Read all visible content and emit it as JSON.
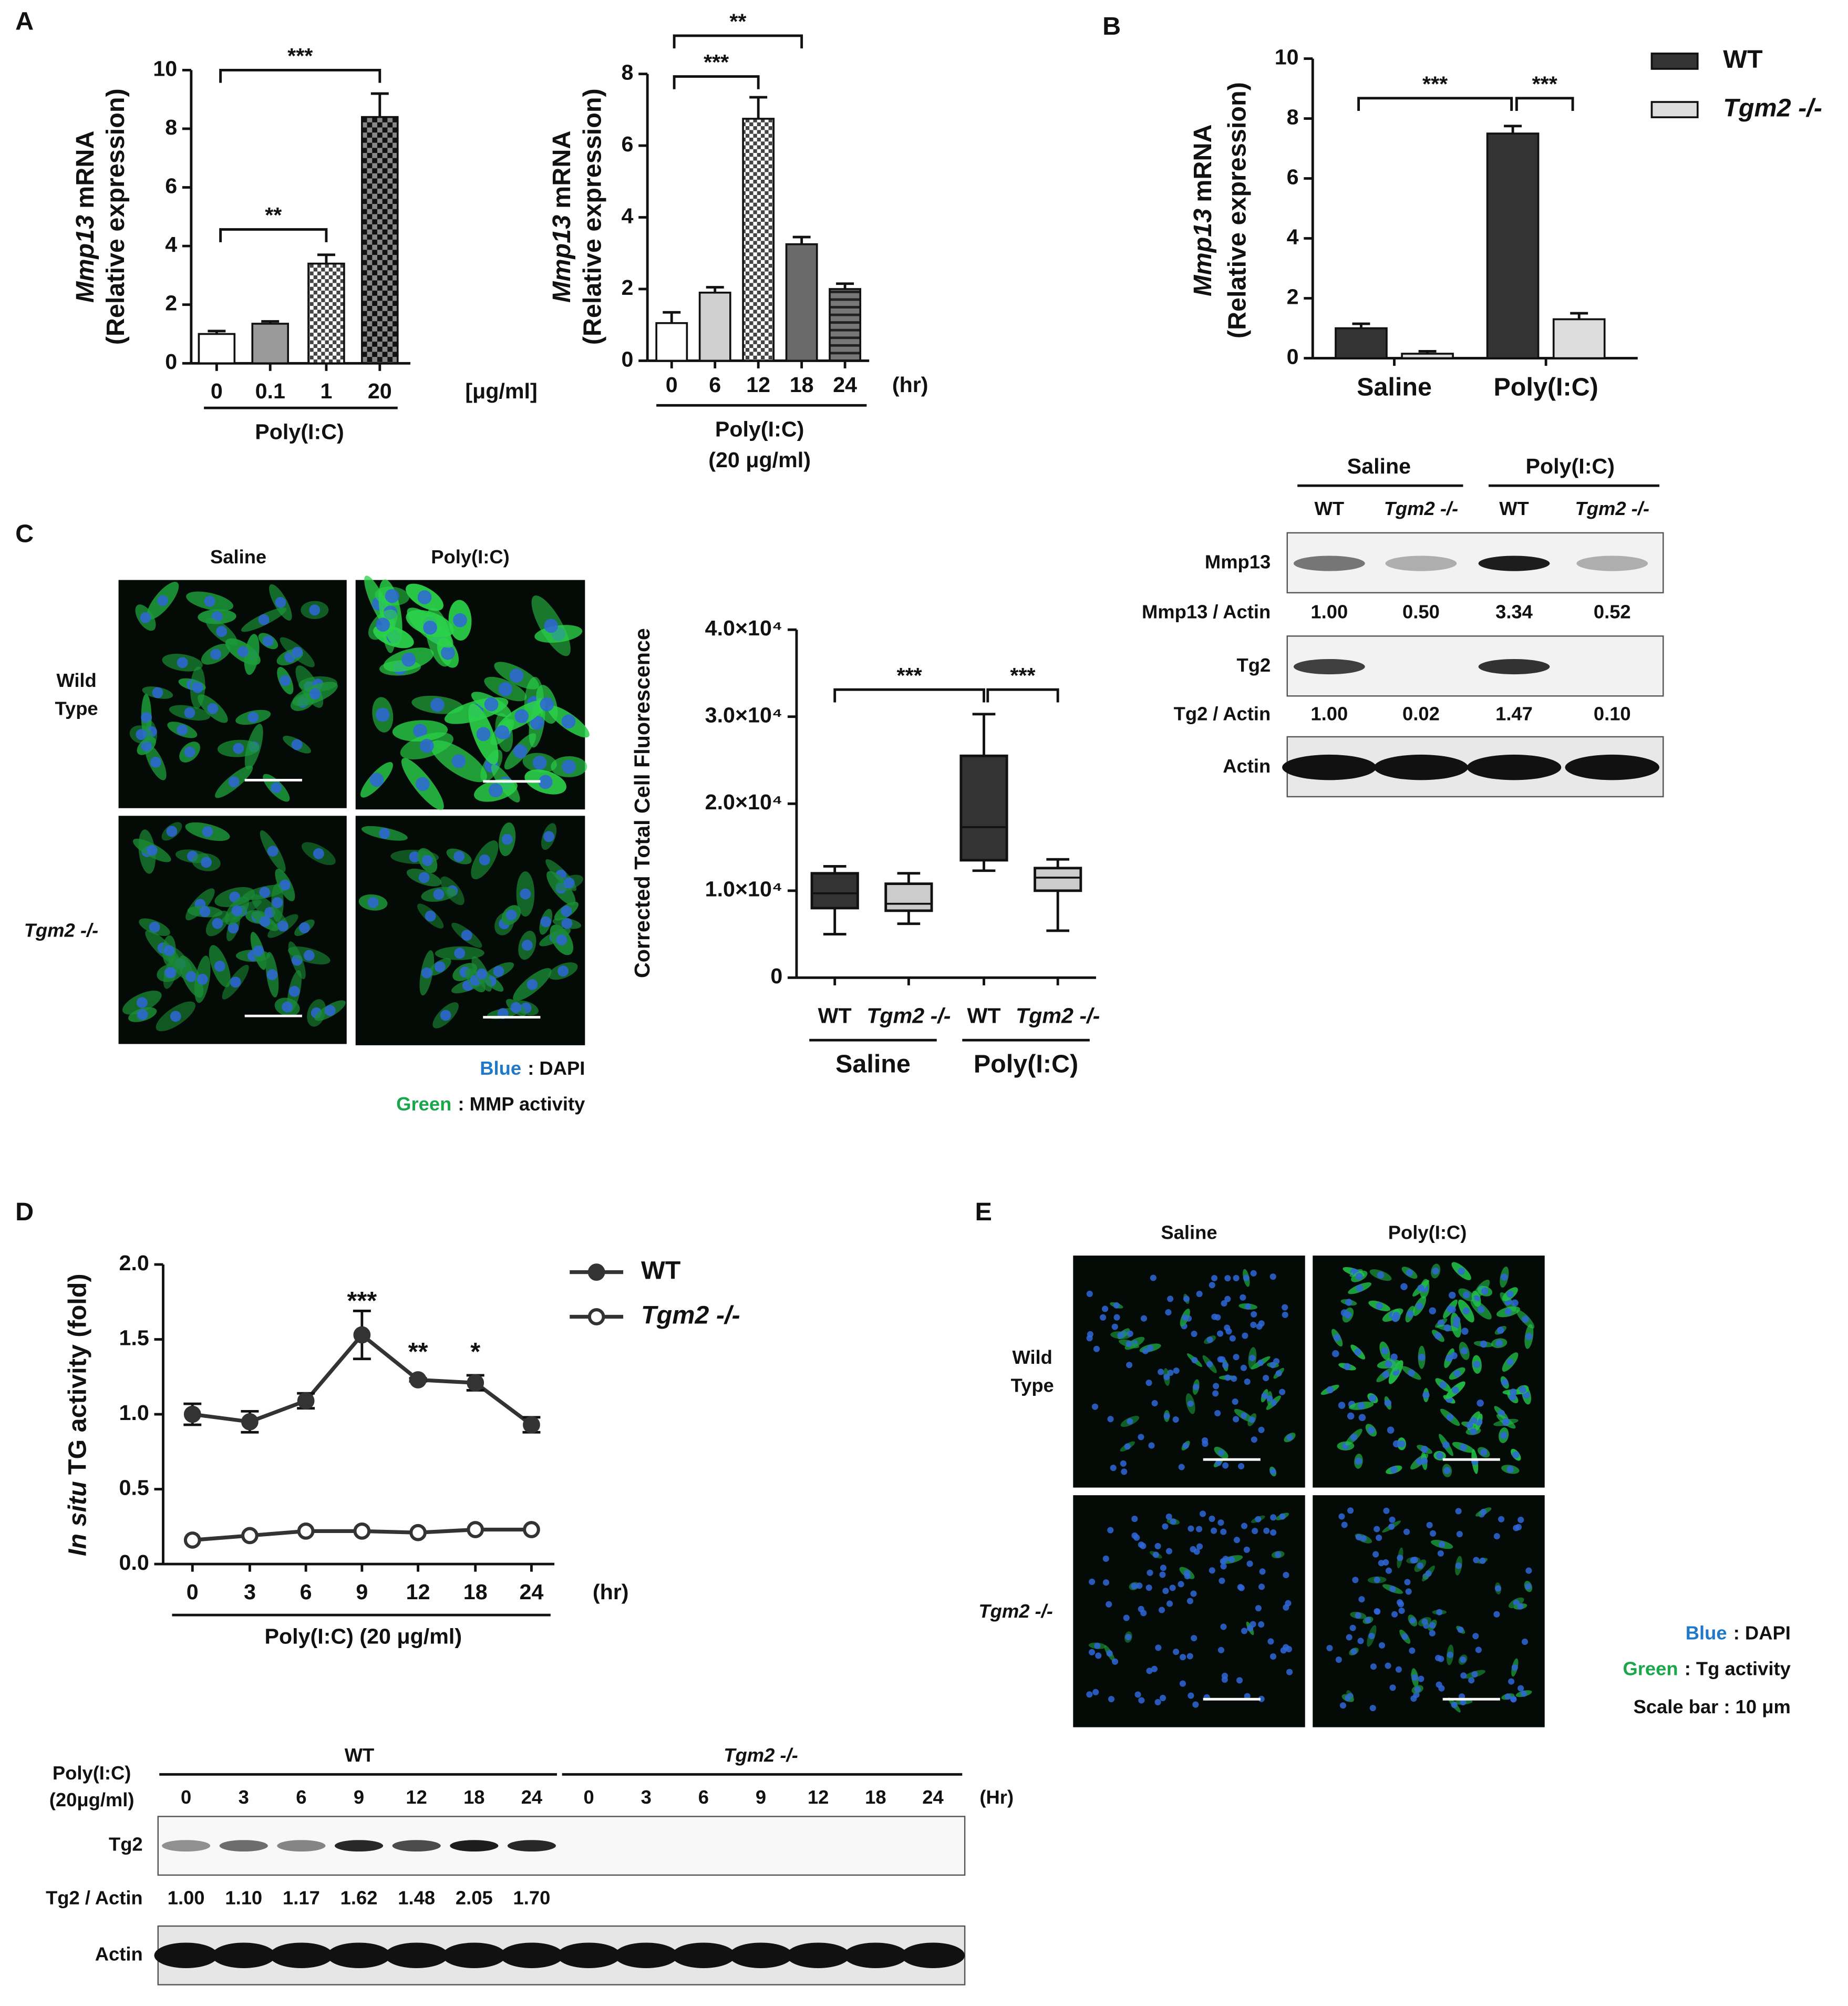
{
  "panel_labels": [
    "A",
    "B",
    "C",
    "D",
    "E"
  ],
  "chart_data": [
    {
      "type": "bar",
      "categories": [
        "0",
        "0.1",
        "1",
        "20"
      ],
      "values": [
        1.0,
        1.35,
        3.4,
        8.4
      ],
      "errors": [
        0.1,
        0.08,
        0.3,
        0.8
      ],
      "colors": [
        "#ffffff",
        "#9a9a9a",
        "url(#chk)",
        "url(#chk2)"
      ],
      "ylim": [
        0,
        10
      ],
      "yticks": [
        0,
        2,
        4,
        6,
        8,
        10
      ],
      "ylabel_italic": "Mmp13",
      "ylabel": "mRNA",
      "ylabel2": "(Relative expression)",
      "unit": "[μg/ml]",
      "xlabel": [
        "Poly(I:C)"
      ],
      "annotations": [
        "***",
        "**"
      ]
    },
    {
      "type": "bar",
      "categories": [
        "0",
        "6",
        "12",
        "18",
        "24"
      ],
      "values": [
        1.05,
        1.9,
        6.75,
        3.25,
        2.0
      ],
      "errors": [
        0.3,
        0.15,
        0.6,
        0.2,
        0.15
      ],
      "colors": [
        "#ffffff",
        "#d0d0d0",
        "url(#chk)",
        "#6a6a6a",
        "url(#hz)"
      ],
      "ylim": [
        0,
        8
      ],
      "yticks": [
        0,
        2,
        4,
        6,
        8
      ],
      "ylabel_italic": "Mmp13",
      "ylabel": "mRNA",
      "ylabel2": "(Relative expression)",
      "unit": "(hr)",
      "xlabel": [
        "Poly(I:C)",
        "(20 μg/ml)"
      ],
      "annotations": [
        "**",
        "***"
      ]
    },
    {
      "type": "bar",
      "categories": [
        "Saline",
        "Poly(I:C)"
      ],
      "series": [
        {
          "name": "WT",
          "color": "#333333",
          "values": [
            1.0,
            7.5
          ],
          "errors": [
            0.15,
            0.25
          ]
        },
        {
          "name": "Tgm2 -/-",
          "color": "#dddddd",
          "values": [
            0.15,
            1.3
          ],
          "errors": [
            0.08,
            0.2
          ]
        }
      ],
      "ylim": [
        0,
        10
      ],
      "yticks": [
        0,
        2,
        4,
        6,
        8,
        10
      ],
      "ylabel_italic": "Mmp13",
      "ylabel": "mRNA",
      "ylabel2": "(Relative expression)",
      "annotations": [
        "***",
        "***"
      ]
    },
    {
      "type": "box",
      "categories": [
        "WT",
        "Tgm2 -/-",
        "WT",
        "Tgm2 -/-"
      ],
      "groups": [
        "Saline",
        "Poly(I:C)"
      ],
      "boxes": [
        {
          "min": 5000,
          "q1": 8000,
          "median": 9700,
          "q3": 12000,
          "max": 12800
        },
        {
          "min": 6200,
          "q1": 7700,
          "median": 8500,
          "q3": 10800,
          "max": 12000
        },
        {
          "min": 12300,
          "q1": 13500,
          "median": 17300,
          "q3": 25500,
          "max": 30300
        },
        {
          "min": 5400,
          "q1": 10000,
          "median": 11500,
          "q3": 12600,
          "max": 13600
        }
      ],
      "colors": [
        "#333333",
        "#cccccc",
        "#333333",
        "#cccccc"
      ],
      "ylim": [
        0,
        40000
      ],
      "yticks": [
        0,
        {
          "value": 10000,
          "label": "1.0×10⁴"
        },
        {
          "value": 20000,
          "label": "2.0×10⁴"
        },
        {
          "value": 30000,
          "label": "3.0×10⁴"
        },
        {
          "value": 40000,
          "label": "4.0×10⁴"
        }
      ],
      "ylabel": "Corrected Total Cell Fluorescence",
      "annotations": [
        "***",
        "***"
      ]
    },
    {
      "type": "line",
      "categories": [
        "0",
        "3",
        "6",
        "9",
        "12",
        "18",
        "24"
      ],
      "series": [
        {
          "name": "WT",
          "color": "#333333",
          "marker_fill": "#333333",
          "values": [
            1.0,
            0.95,
            1.09,
            1.53,
            1.23,
            1.21,
            0.93
          ],
          "errors": [
            0.07,
            0.07,
            0.05,
            0.16,
            0.01,
            0.05,
            0.05
          ]
        },
        {
          "name": "Tgm2 -/-",
          "color": "#333333",
          "marker_fill": "#ffffff",
          "values": [
            0.16,
            0.19,
            0.22,
            0.22,
            0.21,
            0.23,
            0.23
          ]
        }
      ],
      "ylim": [
        0,
        2
      ],
      "yticks": [
        {
          "value": 0,
          "label": "0.0"
        },
        {
          "value": 0.5,
          "label": "0.5"
        },
        {
          "value": 1,
          "label": "1.0"
        },
        {
          "value": 1.5,
          "label": "1.5"
        },
        {
          "value": 2,
          "label": "2.0"
        }
      ],
      "ylabel_italic": "In situ",
      "ylabel": "TG activity (fold)",
      "unit": "(hr)",
      "xlabel": [
        "Poly(I:C) (20 μg/ml)"
      ],
      "annotations": [
        "***",
        "**",
        "*"
      ]
    }
  ],
  "blot_b": {
    "groups": [
      "Saline",
      "Poly(I:C)"
    ],
    "lanes": [
      "WT",
      "Tgm2 -/-",
      "WT",
      "Tgm2 -/-"
    ],
    "rows": [
      {
        "label": "Mmp13"
      },
      {
        "label": "Mmp13 / Actin",
        "values": [
          "1.00",
          "0.50",
          "3.34",
          "0.52"
        ]
      },
      {
        "label": "Tg2"
      },
      {
        "label": "Tg2 / Actin",
        "values": [
          "1.00",
          "0.02",
          "1.47",
          "0.10"
        ]
      },
      {
        "label": "Actin"
      }
    ]
  },
  "images_c": {
    "columns": [
      "Saline",
      "Poly(I:C)"
    ],
    "rows": [
      [
        "Wild",
        "Type"
      ],
      [
        "Tgm2 -/-"
      ]
    ],
    "legend": [
      {
        "key": "Blue",
        "text": ": DAPI"
      },
      {
        "key": "Green",
        "text": ":  MMP activity"
      }
    ]
  },
  "blot_d": {
    "treatment": [
      "Poly(I:C)",
      "(20μg/ml)"
    ],
    "genotypes": [
      "WT",
      "Tgm2 -/-"
    ],
    "lanes": [
      "0",
      "3",
      "6",
      "9",
      "12",
      "18",
      "24",
      "0",
      "3",
      "6",
      "9",
      "12",
      "18",
      "24"
    ],
    "unit": "(Hr)",
    "rows": [
      {
        "label": "Tg2"
      },
      {
        "label": "Tg2 / Actin",
        "values": [
          "1.00",
          "1.10",
          "1.17",
          "1.62",
          "1.48",
          "2.05",
          "1.70"
        ]
      },
      {
        "label": "Actin"
      }
    ]
  },
  "images_e": {
    "columns": [
      "Saline",
      "Poly(I:C)"
    ],
    "rows": [
      [
        "Wild",
        "Type"
      ],
      [
        "Tgm2 -/-"
      ]
    ],
    "legend": [
      {
        "key": "Blue",
        "text": ": DAPI"
      },
      {
        "key": "Green",
        "text": ":  Tg activity"
      }
    ],
    "scale_bar": "Scale bar : 10 μm"
  }
}
